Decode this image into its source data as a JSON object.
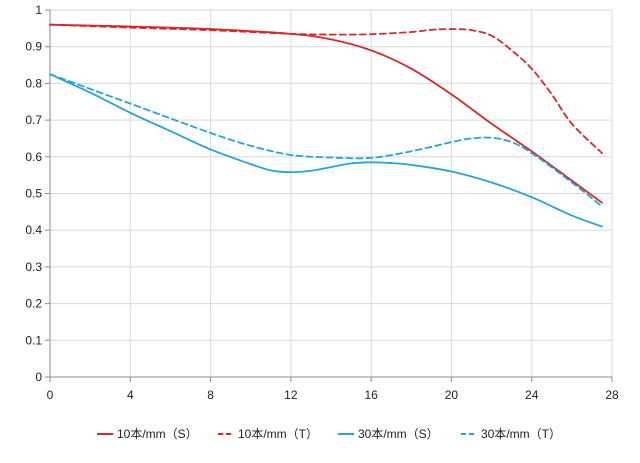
{
  "chart_data": {
    "type": "line",
    "title": "",
    "xlabel": "",
    "ylabel": "",
    "xlim": [
      0,
      28
    ],
    "ylim": [
      0,
      1
    ],
    "x_ticks": [
      "0",
      "4",
      "8",
      "12",
      "16",
      "20",
      "24",
      "28"
    ],
    "y_ticks": [
      "0",
      "0.1",
      "0.2",
      "0.3",
      "0.4",
      "0.5",
      "0.6",
      "0.7",
      "0.8",
      "0.9",
      "1"
    ],
    "grid": true,
    "legend_position": "bottom",
    "series": [
      {
        "name": "10本/mm（S）",
        "color": "#d42a2a",
        "dash": "solid",
        "x": [
          0,
          4,
          8,
          12,
          14,
          16,
          18,
          20,
          22,
          24,
          26,
          27.5
        ],
        "y": [
          0.96,
          0.955,
          0.948,
          0.935,
          0.92,
          0.89,
          0.84,
          0.77,
          0.69,
          0.615,
          0.535,
          0.475
        ]
      },
      {
        "name": "10本/mm（T）",
        "color": "#d42a2a",
        "dash": "dashed",
        "x": [
          0,
          4,
          8,
          12,
          14,
          16,
          18,
          19,
          20,
          21,
          22,
          23,
          24,
          25,
          26,
          27.5
        ],
        "y": [
          0.96,
          0.952,
          0.945,
          0.935,
          0.933,
          0.934,
          0.94,
          0.946,
          0.948,
          0.945,
          0.93,
          0.89,
          0.84,
          0.77,
          0.69,
          0.61
        ]
      },
      {
        "name": "30本/mm（S）",
        "color": "#29a3d6",
        "dash": "solid",
        "x": [
          0,
          2,
          4,
          6,
          8,
          10,
          11,
          12,
          13,
          14,
          15,
          16,
          17,
          18,
          20,
          22,
          24,
          26,
          27.5
        ],
        "y": [
          0.825,
          0.775,
          0.72,
          0.67,
          0.62,
          0.58,
          0.563,
          0.558,
          0.562,
          0.572,
          0.582,
          0.585,
          0.583,
          0.578,
          0.56,
          0.53,
          0.49,
          0.44,
          0.41
        ]
      },
      {
        "name": "30本/mm（T）",
        "color": "#29a3d6",
        "dash": "dashed",
        "x": [
          0,
          4,
          8,
          10,
          12,
          14,
          16,
          18,
          20,
          21,
          22,
          23,
          24,
          26,
          27.5
        ],
        "y": [
          0.825,
          0.745,
          0.665,
          0.63,
          0.605,
          0.598,
          0.597,
          0.615,
          0.64,
          0.65,
          0.652,
          0.64,
          0.61,
          0.53,
          0.465
        ]
      }
    ]
  }
}
